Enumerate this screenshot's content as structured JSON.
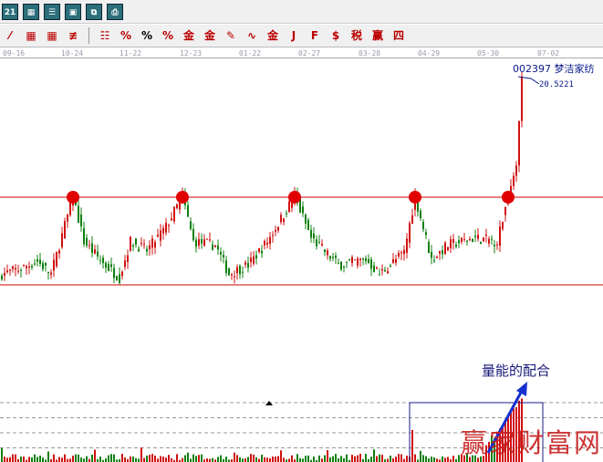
{
  "toolbar": {
    "row1": [
      "calendar-icon",
      "calculator-icon",
      "report-icon",
      "save-icon",
      "network-icon",
      "printer-icon"
    ],
    "row2": [
      "line-icon",
      "grid-icon",
      "grid2-icon",
      "lines-icon",
      "list-icon",
      "percent-strike-icon",
      "percent-icon",
      "percent-lines-icon",
      "gold-circle-icon",
      "gold-lines-icon",
      "pen-icon",
      "wave-icon",
      "gold-icon",
      "j-icon",
      "f-icon",
      "coin-icon",
      "tax-icon",
      "win-icon",
      "four-icon"
    ],
    "percent_label": "%"
  },
  "chart_data": {
    "type": "candlestick",
    "x_ticks": [
      "09-16",
      "10-24",
      "11-22",
      "12-23",
      "01-22",
      "02-27",
      "03-28",
      "04-29",
      "05-30",
      "07-02"
    ],
    "stock": "002397  梦洁家纺",
    "last_price": "20.5221",
    "resistance": 13.85,
    "support": 9.0,
    "peak_indices": [
      26,
      66,
      107,
      151,
      185
    ],
    "anchors": [
      [
        0,
        9.6
      ],
      [
        7,
        9.9
      ],
      [
        13,
        10.3
      ],
      [
        18,
        9.6
      ],
      [
        26,
        13.9
      ],
      [
        30,
        11.4
      ],
      [
        37,
        10.2
      ],
      [
        43,
        9.4
      ],
      [
        47,
        11.4
      ],
      [
        53,
        10.9
      ],
      [
        60,
        12.2
      ],
      [
        66,
        13.9
      ],
      [
        70,
        11.4
      ],
      [
        78,
        11.2
      ],
      [
        83,
        9.6
      ],
      [
        90,
        10.1
      ],
      [
        97,
        11.4
      ],
      [
        107,
        13.9
      ],
      [
        113,
        11.6
      ],
      [
        123,
        10.1
      ],
      [
        133,
        10.4
      ],
      [
        138,
        9.6
      ],
      [
        147,
        10.8
      ],
      [
        151,
        13.9
      ],
      [
        157,
        10.4
      ],
      [
        163,
        11.2
      ],
      [
        173,
        11.6
      ],
      [
        181,
        11.4
      ],
      [
        185,
        13.9
      ],
      [
        188,
        15.6
      ],
      [
        190,
        20.52
      ]
    ],
    "volume_gridlines": 4
  },
  "annotation": "量能的配合",
  "watermark": "赢家财富网"
}
